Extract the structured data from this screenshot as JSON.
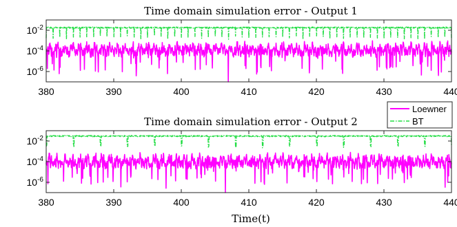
{
  "chart_data": [
    {
      "type": "line",
      "title": "Time domain simulation error - Output 1",
      "xlabel": "",
      "ylabel": "",
      "xlim": [
        380,
        440
      ],
      "ylim": [
        1e-07,
        0.1
      ],
      "yscale": "log",
      "xticks": [
        "380",
        "390",
        "400",
        "410",
        "420",
        "430",
        "440"
      ],
      "yticks": [
        {
          "base": "10",
          "exp": "-2",
          "value": 0.01
        },
        {
          "base": "10",
          "exp": "-4",
          "value": 0.0001
        },
        {
          "base": "10",
          "exp": "-6",
          "value": 1e-06
        }
      ],
      "grid": false,
      "series": [
        {
          "name": "Loewner",
          "color": "#ff00ff",
          "style": "solid",
          "level": 0.00015,
          "period": 1.0
        },
        {
          "name": "BT",
          "color": "#22dd44",
          "style": "dash-dot",
          "level": 0.018,
          "period": 1.0
        }
      ]
    },
    {
      "type": "line",
      "title": "Time domain simulation error - Output 2",
      "xlabel": "Time(t)",
      "ylabel": "",
      "xlim": [
        380,
        440
      ],
      "ylim": [
        1e-07,
        0.1
      ],
      "yscale": "log",
      "xticks": [
        "380",
        "390",
        "400",
        "410",
        "420",
        "430",
        "440"
      ],
      "yticks": [
        {
          "base": "10",
          "exp": "-2",
          "value": 0.01
        },
        {
          "base": "10",
          "exp": "-4",
          "value": 0.0001
        },
        {
          "base": "10",
          "exp": "-6",
          "value": 1e-06
        }
      ],
      "grid": false,
      "series": [
        {
          "name": "Loewner",
          "color": "#ff00ff",
          "style": "solid",
          "level": 0.00012,
          "period": 1.0
        },
        {
          "name": "BT",
          "color": "#22dd44",
          "style": "dash-dot",
          "level": 0.03,
          "period": 4.0
        }
      ]
    }
  ],
  "legend": {
    "placement": "between-panels-right",
    "entries": [
      {
        "label": "Loewner",
        "color": "#ff00ff",
        "style": "solid"
      },
      {
        "label": "BT",
        "color": "#22dd44",
        "style": "dash-dot"
      }
    ]
  }
}
